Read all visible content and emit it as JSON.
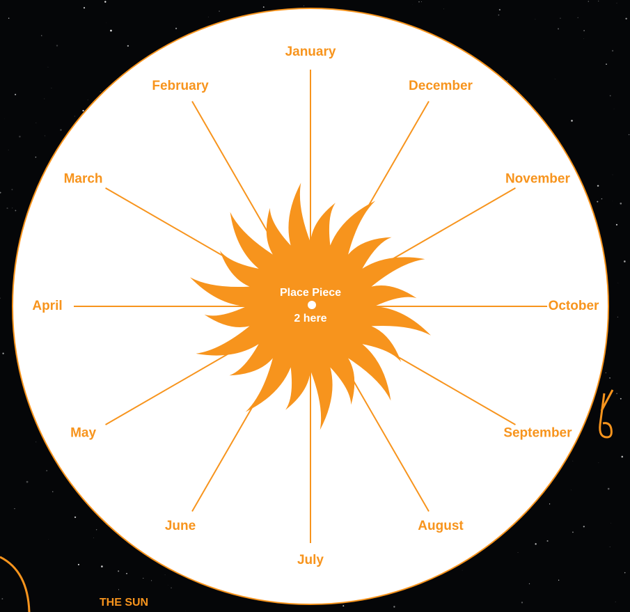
{
  "months": [
    "January",
    "February",
    "March",
    "April",
    "May",
    "June",
    "July",
    "August",
    "September",
    "October",
    "November",
    "December"
  ],
  "center_label": {
    "line1": "Place  Piece",
    "line2": "2 here"
  },
  "footer": "THE SUN"
}
